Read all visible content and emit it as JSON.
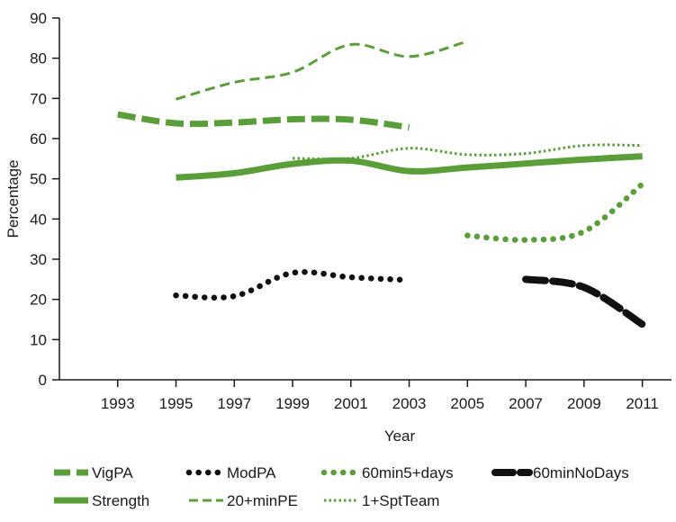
{
  "chart_data": {
    "type": "line",
    "title": "",
    "xlabel": "Year",
    "ylabel": "Percentage",
    "x": [
      1993,
      1995,
      1997,
      1999,
      2001,
      2003,
      2005,
      2007,
      2009,
      2011
    ],
    "x_tick_labels": [
      "1993",
      "1995",
      "1997",
      "1999",
      "2001",
      "2003",
      "2005",
      "2007",
      "2009",
      "2011"
    ],
    "y_ticks": [
      0,
      10,
      20,
      30,
      40,
      50,
      60,
      70,
      80,
      90
    ],
    "y_tick_labels": [
      "0",
      "10",
      "20",
      "30",
      "40",
      "50",
      "60",
      "70",
      "80",
      "90"
    ],
    "xlim": [
      1991,
      2012
    ],
    "ylim": [
      0,
      90
    ],
    "grid": false,
    "legend_position": "bottom",
    "series": [
      {
        "name": "VigPA",
        "color": "#5a9e3a",
        "style": "dash-thick",
        "x": [
          1993,
          1995,
          1997,
          1999,
          2001,
          2003
        ],
        "y": [
          66.0,
          63.8,
          64.0,
          64.8,
          64.7,
          62.8
        ]
      },
      {
        "name": "ModPA",
        "color": "#111111",
        "style": "dot-round",
        "x": [
          1995,
          1997,
          1999,
          2001,
          2003
        ],
        "y": [
          21.0,
          20.8,
          26.6,
          25.5,
          24.8
        ]
      },
      {
        "name": "60min5+days",
        "color": "#5a9e3a",
        "style": "dot-round",
        "x": [
          2005,
          2007,
          2009,
          2011
        ],
        "y": [
          35.9,
          34.8,
          36.9,
          48.7
        ]
      },
      {
        "name": "60minNoDays",
        "color": "#111111",
        "style": "dash-heavy",
        "x": [
          2007,
          2009,
          2011
        ],
        "y": [
          25.0,
          23.0,
          13.8
        ]
      },
      {
        "name": "Strength",
        "color": "#5a9e3a",
        "style": "solid",
        "x": [
          1995,
          1997,
          1999,
          2001,
          2003,
          2005,
          2007,
          2009,
          2011
        ],
        "y": [
          50.3,
          51.4,
          53.7,
          54.5,
          51.9,
          52.8,
          53.8,
          54.8,
          55.6
        ]
      },
      {
        "name": "20+minPE",
        "color": "#5a9e3a",
        "style": "dash-thin",
        "x": [
          1995,
          1997,
          1999,
          2001,
          2003,
          2005
        ],
        "y": [
          69.8,
          74.0,
          76.5,
          83.4,
          80.4,
          84.2
        ]
      },
      {
        "name": "1+SptTeam",
        "color": "#5a9e3a",
        "style": "dot-fine",
        "x": [
          1999,
          2001,
          2003,
          2005,
          2007,
          2009,
          2011
        ],
        "y": [
          55.1,
          55.1,
          57.6,
          56.0,
          56.3,
          58.3,
          58.3
        ]
      }
    ]
  }
}
